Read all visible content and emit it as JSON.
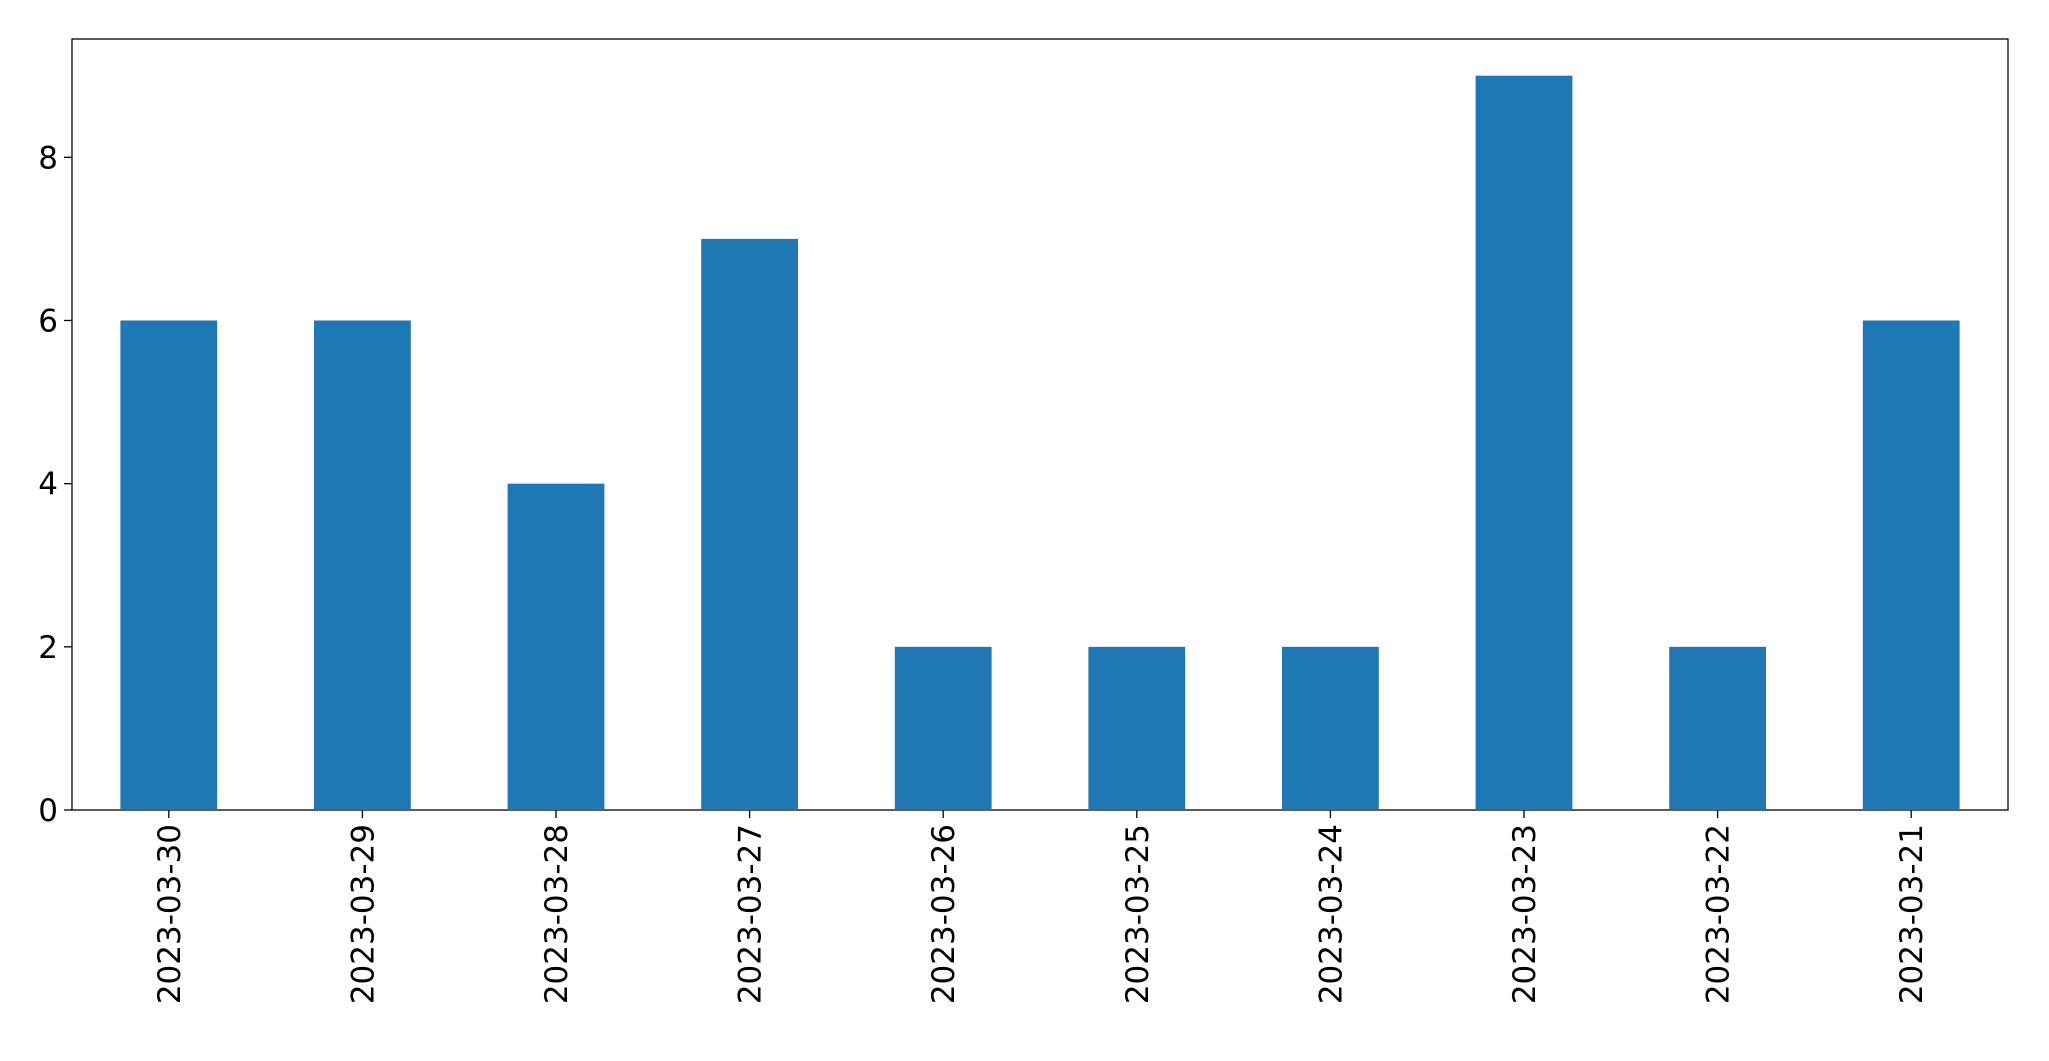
{
  "chart_data": {
    "type": "bar",
    "categories": [
      "2023-03-30",
      "2023-03-29",
      "2023-03-28",
      "2023-03-27",
      "2023-03-26",
      "2023-03-25",
      "2023-03-24",
      "2023-03-23",
      "2023-03-22",
      "2023-03-21"
    ],
    "values": [
      6,
      6,
      4,
      7,
      2,
      2,
      2,
      9,
      2,
      6
    ],
    "color": "#1f77b4",
    "ylim": [
      0,
      9.45
    ],
    "yticks": [
      0,
      2,
      4,
      6,
      8
    ],
    "grid": false
  }
}
